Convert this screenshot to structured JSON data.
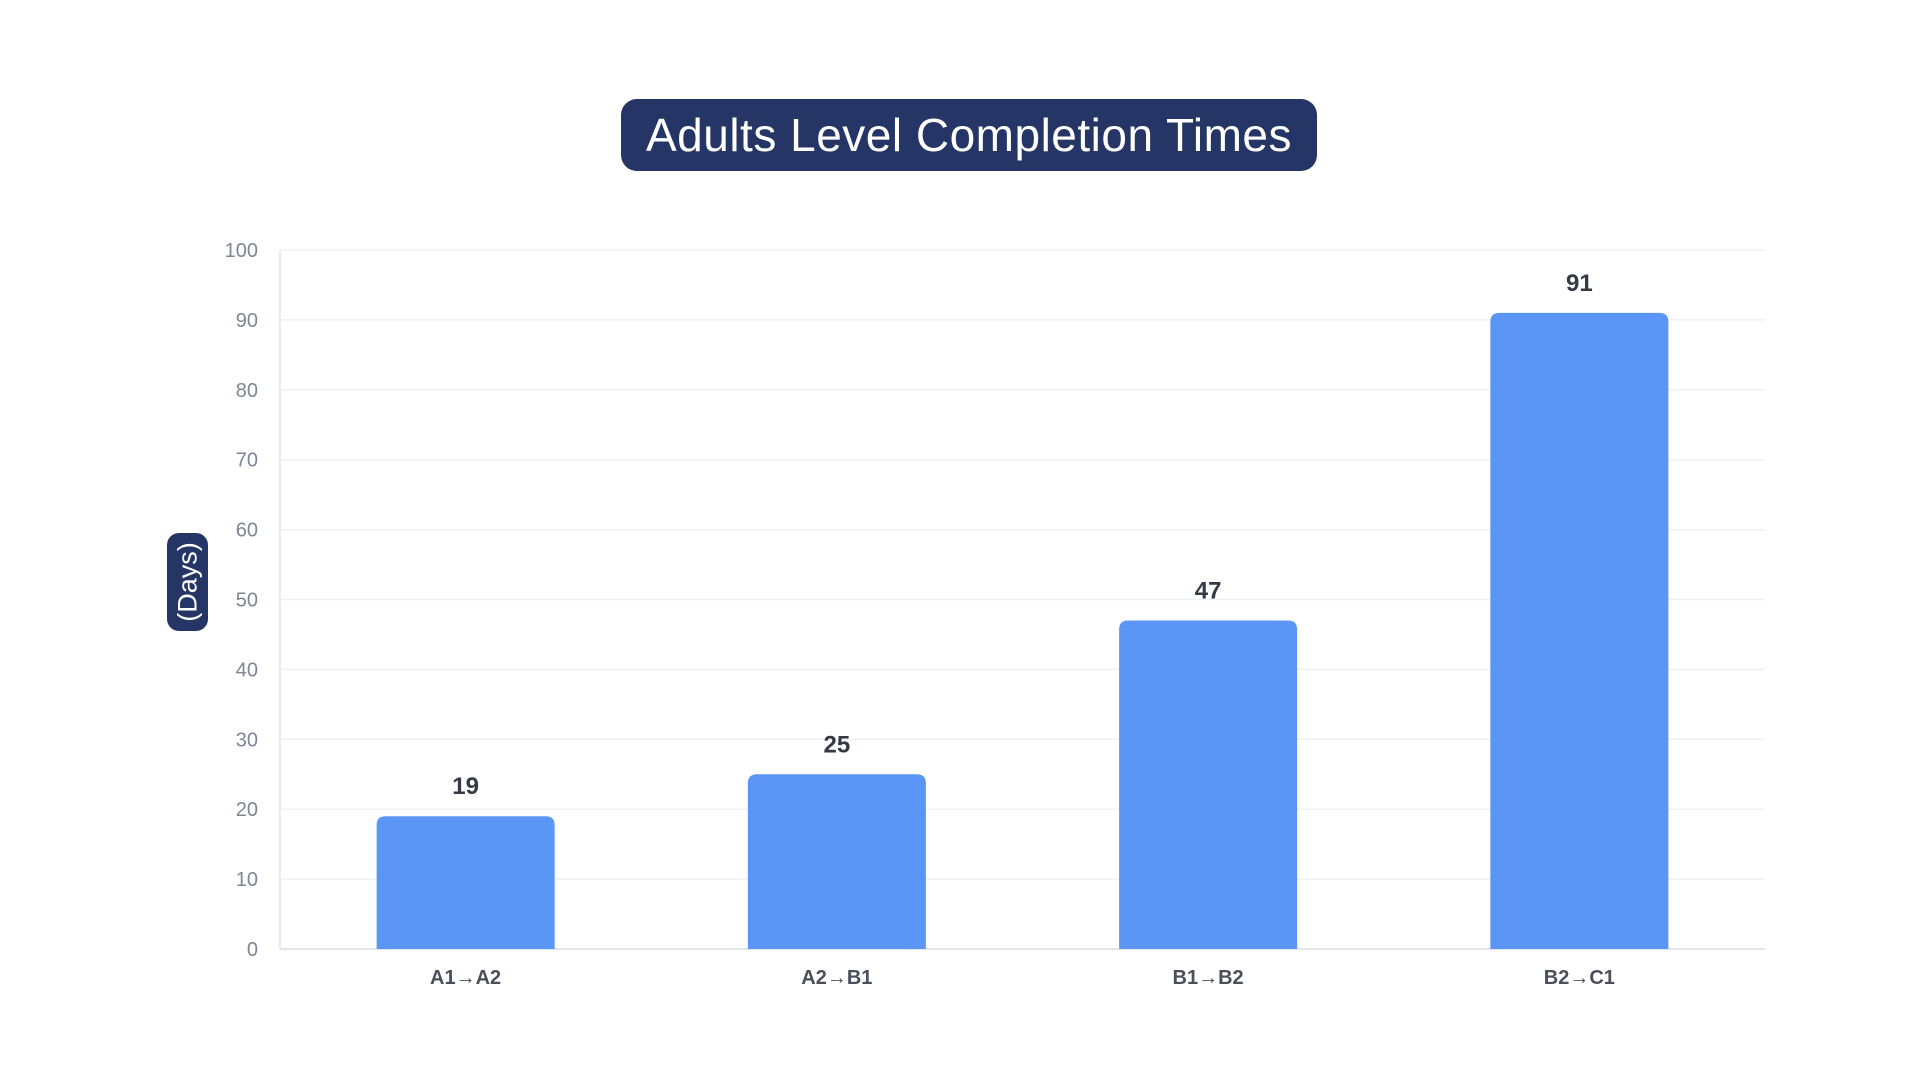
{
  "chart_data": {
    "type": "bar",
    "title": "Adults Level Completion Times",
    "xlabel": "",
    "ylabel": "(Days)",
    "categories": [
      "A1→A2",
      "A2→B1",
      "B1→B2",
      "B2→C1"
    ],
    "values": [
      19,
      25,
      47,
      91
    ],
    "data_labels": [
      "19",
      "25",
      "47",
      "91"
    ],
    "ylim": [
      0,
      100
    ],
    "yticks": [
      0,
      10,
      20,
      30,
      40,
      50,
      60,
      70,
      80,
      90,
      100
    ],
    "ytick_labels": [
      "0",
      "10",
      "20",
      "30",
      "40",
      "50",
      "60",
      "70",
      "80",
      "90",
      "100"
    ],
    "grid": true,
    "legend": "none",
    "bar_color": "#5b96f6",
    "title_background": "#253566"
  }
}
